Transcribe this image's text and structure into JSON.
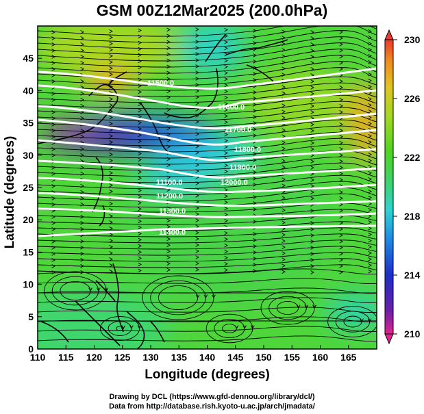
{
  "title": "GSM 00Z12Mar2025 (200.0hPa)",
  "axes": {
    "xlabel": "Longitude (degrees)",
    "ylabel": "Latitude  (degrees)",
    "xticks": [
      "110",
      "115",
      "120",
      "125",
      "130",
      "135",
      "140",
      "145",
      "150",
      "155",
      "160",
      "165"
    ],
    "yticks": [
      "0",
      "5",
      "10",
      "15",
      "20",
      "25",
      "30",
      "35",
      "40",
      "45"
    ],
    "xlim": [
      110,
      170
    ],
    "ylim": [
      0,
      50
    ]
  },
  "colorbar": {
    "ticks": [
      "230",
      "226",
      "222",
      "218",
      "214",
      "210"
    ],
    "range": [
      210,
      230
    ],
    "colors": [
      "#e0248f",
      "#6a1fa8",
      "#1c2ec8",
      "#1e88e6",
      "#2ed3d3",
      "#3fd36a",
      "#52d422",
      "#a4d822",
      "#e0c41e",
      "#f08a1e",
      "#e83a2e"
    ]
  },
  "contour_labels": [
    "11500.0",
    "11600.0",
    "11700.0",
    "11800.0",
    "11900.0",
    "12000.0",
    "11100.0",
    "11200.0",
    "11300.0",
    "11400.0"
  ],
  "credits": {
    "line1": "Drawing by DCL (https://www.gfd-dennou.org/library/dcl/)",
    "line2": "Data from http://database.rish.kyoto-u.ac.jp/arch/jmadata/"
  },
  "chart_data": {
    "type": "heatmap",
    "title": "GSM 00Z12Mar2025 (200.0hPa)",
    "xlabel": "Longitude (degrees)",
    "ylabel": "Latitude  (degrees)",
    "xlim": [
      110,
      170
    ],
    "ylim": [
      0,
      50
    ],
    "field": "temperature-like shaded field with height contours and streamlines",
    "color_range": [
      210,
      230
    ],
    "contour_levels": [
      11100,
      11200,
      11300,
      11400,
      11500,
      11600,
      11700,
      11800,
      11900,
      12000
    ],
    "grid": true
  }
}
